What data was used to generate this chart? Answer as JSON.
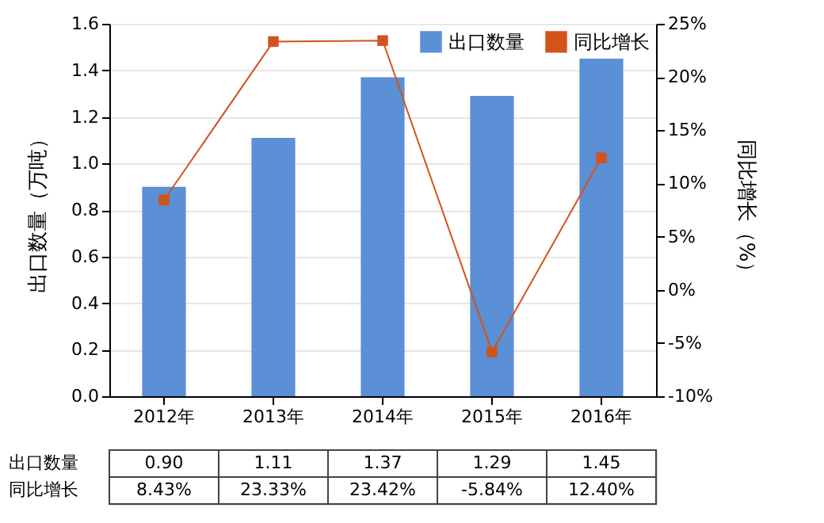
{
  "chart_data": {
    "type": "bar",
    "categories": [
      "2012年",
      "2013年",
      "2014年",
      "2015年",
      "2016年"
    ],
    "series": [
      {
        "name": "出口数量",
        "color": "#5b8fd6",
        "values": [
          0.9,
          1.11,
          1.37,
          1.29,
          1.45
        ],
        "value_labels": [
          "0.90",
          "1.11",
          "1.37",
          "1.29",
          "1.45"
        ]
      },
      {
        "name": "同比增长",
        "type": "line",
        "axis": "y2",
        "color": "#d2541b",
        "marker": "square",
        "values": [
          8.43,
          23.33,
          23.42,
          -5.84,
          12.4
        ],
        "value_labels": [
          "8.43%",
          "23.33%",
          "23.42%",
          "-5.84%",
          "12.40%"
        ]
      }
    ],
    "ylabel": "出口数量（万吨）",
    "y2label": "同比增长（%）",
    "ylim": [
      0,
      1.6
    ],
    "yticks": [
      {
        "value": 0,
        "label": "0.0"
      },
      {
        "value": 0.2,
        "label": "0.2"
      },
      {
        "value": 0.4,
        "label": "0.4"
      },
      {
        "value": 0.6,
        "label": "0.6"
      },
      {
        "value": 0.8,
        "label": "0.8"
      },
      {
        "value": 1,
        "label": "1.0"
      },
      {
        "value": 1.2,
        "label": "1.2"
      },
      {
        "value": 1.4,
        "label": "1.4"
      },
      {
        "value": 1.6,
        "label": "1.6"
      }
    ],
    "y2lim": [
      -10,
      25
    ],
    "y2ticks": [
      {
        "value": -10,
        "label": "-10%"
      },
      {
        "value": -5,
        "label": "-5%"
      },
      {
        "value": 0,
        "label": "0%"
      },
      {
        "value": 5,
        "label": "5%"
      },
      {
        "value": 10,
        "label": "10%"
      },
      {
        "value": 15,
        "label": "15%"
      },
      {
        "value": 20,
        "label": "20%"
      },
      {
        "value": 25,
        "label": "25%"
      }
    ],
    "grid": "y",
    "legend": "top right"
  }
}
